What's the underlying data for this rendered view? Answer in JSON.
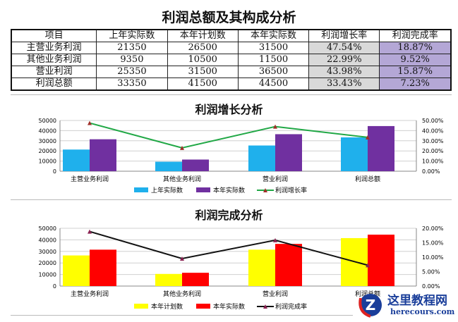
{
  "title": "利润总额及其构成分析",
  "table": {
    "headers": [
      "项目",
      "上年实际数",
      "本年计划数",
      "本年实际数",
      "利润增长率",
      "利润完成率"
    ],
    "rows": [
      [
        "主营业务利润",
        "21350",
        "26500",
        "31500",
        "47.54%",
        "18.87%"
      ],
      [
        "其他业务利润",
        "9350",
        "10500",
        "11500",
        "22.99%",
        "9.52%"
      ],
      [
        "营业利润",
        "25350",
        "31500",
        "36500",
        "43.98%",
        "15.87%"
      ],
      [
        "利润总额",
        "33350",
        "41500",
        "44500",
        "33.43%",
        "7.23%"
      ]
    ]
  },
  "chart_data": [
    {
      "type": "bar",
      "title": "利润增长分析",
      "categories": [
        "主营业务利润",
        "其他业务利润",
        "营业利润",
        "利润总额"
      ],
      "series": [
        {
          "name": "上年实际数",
          "values": [
            21350,
            9350,
            25350,
            33350
          ],
          "color": "#1fb0ec",
          "kind": "bar"
        },
        {
          "name": "本年实际数",
          "values": [
            31500,
            11500,
            36500,
            44500
          ],
          "color": "#7030a0",
          "kind": "bar"
        },
        {
          "name": "利润增长率",
          "values": [
            47.54,
            22.99,
            43.98,
            33.43
          ],
          "color": "#21a846",
          "marker": "#a0302a",
          "kind": "line"
        }
      ],
      "ylim": [
        0,
        50000
      ],
      "yticks": [
        "0",
        "10000",
        "20000",
        "30000",
        "40000",
        "50000"
      ],
      "y2lim": [
        0,
        50
      ],
      "y2ticks": [
        "0.00%",
        "10.00%",
        "20.00%",
        "30.00%",
        "40.00%",
        "50.00%"
      ],
      "legend": "bottom"
    },
    {
      "type": "bar",
      "title": "利润完成分析",
      "categories": [
        "主营业务利润",
        "其他业务利润",
        "营业利润",
        "利润总额"
      ],
      "series": [
        {
          "name": "本年计划数",
          "values": [
            26500,
            10500,
            31500,
            41500
          ],
          "color": "#ffff00",
          "kind": "bar"
        },
        {
          "name": "本年实际数",
          "values": [
            31500,
            11500,
            36500,
            44500
          ],
          "color": "#ff0000",
          "kind": "bar"
        },
        {
          "name": "利润完成率",
          "values": [
            18.87,
            9.52,
            15.87,
            7.23
          ],
          "color": "#111111",
          "marker": "#8b2252",
          "kind": "line"
        }
      ],
      "ylim": [
        0,
        50000
      ],
      "yticks": [
        "0",
        "10000",
        "20000",
        "30000",
        "40000",
        "50000"
      ],
      "y2lim": [
        0,
        20
      ],
      "y2ticks": [
        "0.00%",
        "5.00%",
        "10.00%",
        "15.00%",
        "20.00%"
      ],
      "legend": "bottom"
    }
  ],
  "watermark": {
    "name": "这里教程网",
    "url": "herecours.com"
  }
}
